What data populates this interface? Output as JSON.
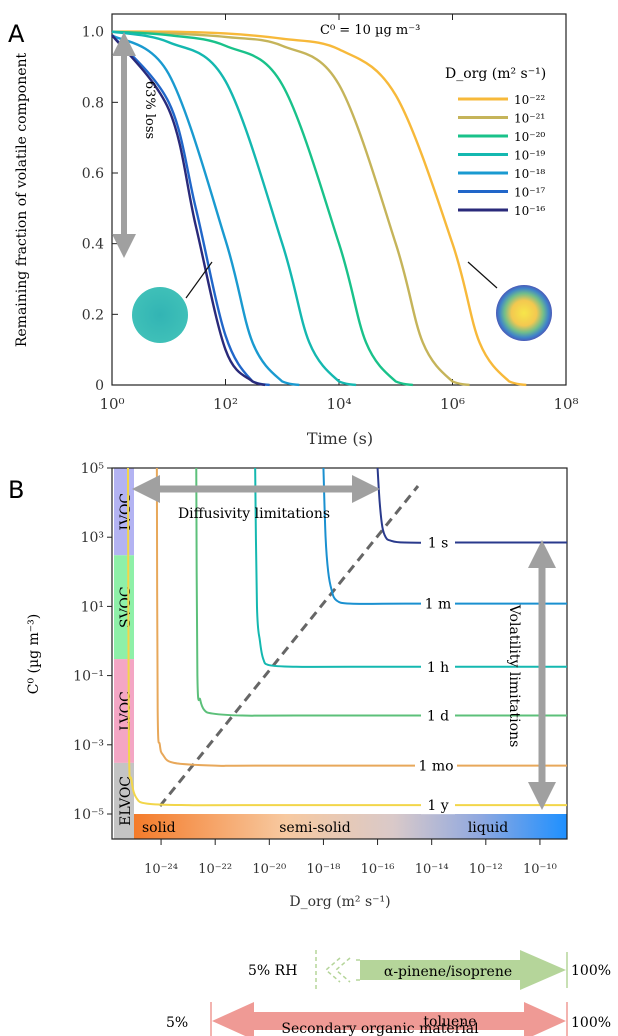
{
  "panel_a": {
    "letter": "A",
    "annotation": "C⁰ = 10 µg m⁻³",
    "legend_title": "D_org (m² s⁻¹)",
    "loss_label": "63% loss"
  },
  "panel_b": {
    "letter": "B",
    "diffusivity_label": "Diffusivity limitations",
    "volatility_label": "Volatility limitations",
    "phase_labels": [
      "solid",
      "semi-solid",
      "liquid"
    ],
    "voc_classes": [
      {
        "label": "IVOC",
        "color": "#b3b3f2",
        "range": [
          300,
          100000
        ]
      },
      {
        "label": "SVOC",
        "color": "#8ef0a8",
        "range": [
          0.3,
          300
        ]
      },
      {
        "label": "LVOC",
        "color": "#f4a6c4",
        "range": [
          0.0003,
          0.3
        ]
      },
      {
        "label": "ELVOC",
        "color": "#c4c4c4",
        "range": [
          1e-05,
          0.0003
        ]
      }
    ]
  },
  "bottom": {
    "rh_label": "5% RH",
    "upper_arrow_label": "α-pinene/isoprene",
    "upper_end_label": "100%",
    "lower_start_label": "5%",
    "lower_arrow_label": "toluene",
    "lower_end_label": "100%",
    "caption": "Secondary organic material",
    "upper_color": "#b5d59a",
    "lower_color": "#ef9a95"
  },
  "chart_data": [
    {
      "type": "line",
      "ylabel": "Remaining fraction of volatile component",
      "xlabel": "Time (s)",
      "xscale": "log",
      "xlim": [
        1,
        100000000
      ],
      "ylim": [
        0,
        1.05
      ],
      "xticks": [
        1,
        100,
        10000,
        1000000,
        100000000
      ],
      "yticks": [
        0,
        0.2,
        0.4,
        0.6,
        0.8,
        1.0
      ],
      "legend_position": "top-right",
      "series": [
        {
          "name": "10⁻²²",
          "color": "#f7b93a",
          "x": [
            1,
            10,
            100,
            1000,
            10000,
            100000,
            1000000,
            3000000,
            10000000,
            20000000
          ],
          "y": [
            1.0,
            1.0,
            0.995,
            0.98,
            0.95,
            0.82,
            0.4,
            0.12,
            0.01,
            0.0
          ]
        },
        {
          "name": "10⁻²¹",
          "color": "#c5b45a",
          "x": [
            1,
            10,
            100,
            1000,
            10000,
            100000,
            300000,
            1000000,
            2000000
          ],
          "y": [
            1.0,
            0.995,
            0.985,
            0.96,
            0.85,
            0.4,
            0.12,
            0.01,
            0.0
          ]
        },
        {
          "name": "10⁻²⁰",
          "color": "#19c28a",
          "x": [
            1,
            10,
            100,
            1000,
            10000,
            30000,
            100000,
            200000
          ],
          "y": [
            1.0,
            0.99,
            0.96,
            0.85,
            0.4,
            0.12,
            0.01,
            0.0
          ]
        },
        {
          "name": "10⁻¹⁹",
          "color": "#14b8b0",
          "x": [
            1,
            10,
            100,
            1000,
            3000,
            10000,
            20000
          ],
          "y": [
            1.0,
            0.97,
            0.86,
            0.4,
            0.12,
            0.01,
            0.0
          ]
        },
        {
          "name": "10⁻¹⁸",
          "color": "#1a9ad0",
          "x": [
            1,
            10,
            100,
            300,
            1000,
            2000
          ],
          "y": [
            0.99,
            0.88,
            0.41,
            0.12,
            0.01,
            0.0
          ]
        },
        {
          "name": "10⁻¹⁷",
          "color": "#2166c9",
          "x": [
            1,
            10,
            30,
            100,
            300,
            600
          ],
          "y": [
            0.99,
            0.8,
            0.5,
            0.14,
            0.01,
            0.0
          ]
        },
        {
          "name": "10⁻¹⁶",
          "color": "#2a2a7a",
          "x": [
            1,
            10,
            30,
            100,
            300,
            500
          ],
          "y": [
            0.99,
            0.78,
            0.45,
            0.1,
            0.01,
            0.0
          ]
        }
      ]
    },
    {
      "type": "line",
      "ylabel": "C⁰ (µg m⁻³)",
      "xlabel": "D_org (m² s⁻¹)",
      "xscale": "log",
      "yscale": "log",
      "xlim": [
        1e-25,
        1e-09
      ],
      "ylim": [
        1e-05,
        100000
      ],
      "xticks": [
        1e-24,
        1e-22,
        1e-20,
        1e-18,
        1e-16,
        1e-14,
        1e-12,
        1e-10
      ],
      "yticks": [
        1e-05,
        0.001,
        0.1,
        10,
        1000,
        100000
      ],
      "series": [
        {
          "name": "1 s",
          "color": "#2a3a8c",
          "x": [
            1e-16,
            1.2e-16,
            1.5e-16,
            2e-16,
            3e-16,
            1e-15,
            1e-13,
            1e-09
          ],
          "y": [
            100000,
            10000,
            2000,
            1000,
            800,
            700,
            700,
            700
          ]
        },
        {
          "name": "1 m",
          "color": "#1a90d0",
          "x": [
            1e-18,
            1.2e-18,
            1.5e-18,
            2e-18,
            3e-18,
            1e-17,
            1e-15,
            1e-09
          ],
          "y": [
            100000,
            1000,
            100,
            30,
            15,
            12,
            12,
            12
          ]
        },
        {
          "name": "1 h",
          "color": "#14b8b0",
          "x": [
            3e-21,
            3.5e-21,
            4.5e-21,
            6e-21,
            1e-20,
            1e-19,
            1e-17,
            1e-09
          ],
          "y": [
            100000,
            10,
            1,
            0.3,
            0.2,
            0.18,
            0.18,
            0.18
          ]
        },
        {
          "name": "1 d",
          "color": "#5cc07a",
          "x": [
            2e-23,
            2.2e-23,
            2.8e-23,
            4e-23,
            8e-23,
            1e-21,
            1e-19,
            1e-09
          ],
          "y": [
            100000,
            0.1,
            0.02,
            0.01,
            0.008,
            0.007,
            0.007,
            0.007
          ]
        },
        {
          "name": "1 mo",
          "color": "#e8a85a",
          "x": [
            7e-25,
            7.5e-25,
            9e-25,
            1.2e-24,
            3e-24,
            1e-22,
            1e-20,
            1e-09
          ],
          "y": [
            100000,
            0.01,
            0.001,
            0.0005,
            0.0003,
            0.00025,
            0.00025,
            0.00025
          ]
        },
        {
          "name": "1 y",
          "color": "#f2d64a",
          "x": [
            6e-26,
            6.5e-26,
            8e-26,
            1.2e-25,
            3e-25,
            1e-23,
            1e-21,
            1e-09
          ],
          "y": [
            100000,
            0.001,
            0.0001,
            3e-05,
            2e-05,
            1.8e-05,
            1.8e-05,
            1.8e-05
          ]
        }
      ]
    }
  ]
}
